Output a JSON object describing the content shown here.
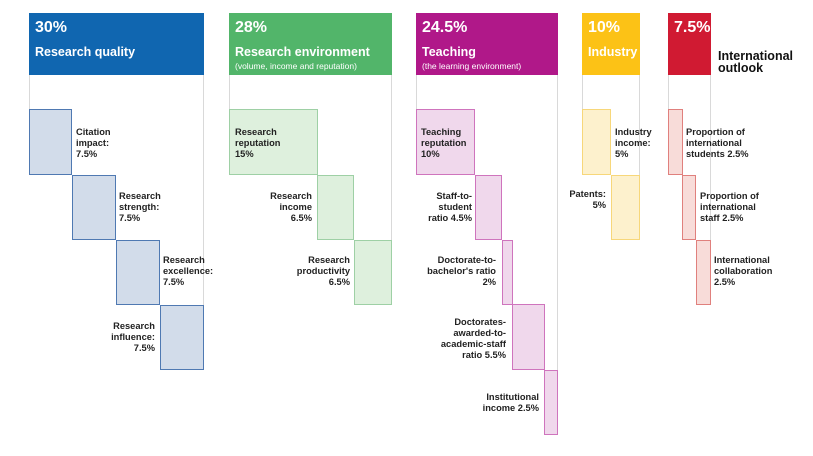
{
  "colors": {
    "research_quality": "#1066b0",
    "research_environment": "#52b56a",
    "teaching": "#b01889",
    "industry": "#fcc216",
    "international_outlook": "#d01a32"
  },
  "research_quality": {
    "percent": "30%",
    "title": "Research quality",
    "items": [
      {
        "lines": [
          "Citation",
          "impact:",
          "7.5%"
        ]
      },
      {
        "lines": [
          "Research",
          "strength:",
          "7.5%"
        ]
      },
      {
        "lines": [
          "Research",
          "excellence:",
          "7.5%"
        ]
      },
      {
        "lines": [
          "Research",
          "influence:",
          "7.5%"
        ]
      }
    ]
  },
  "research_environment": {
    "percent": "28%",
    "title": "Research environment",
    "subtitle": "(volume, income and reputation)",
    "items": [
      {
        "lines": [
          "Research",
          "reputation",
          "15%"
        ]
      },
      {
        "lines": [
          "Research",
          "income",
          "6.5%"
        ]
      },
      {
        "lines": [
          "Research",
          "productivity",
          "6.5%"
        ]
      }
    ]
  },
  "teaching": {
    "percent": "24.5%",
    "title": "Teaching",
    "subtitle": "(the learning environment)",
    "items": [
      {
        "lines": [
          "Teaching",
          "reputation",
          "10%"
        ]
      },
      {
        "lines": [
          "Staff-to-",
          "student",
          "ratio 4.5%"
        ]
      },
      {
        "lines": [
          "Doctorate-to-",
          "bachelor's ratio",
          "2%"
        ]
      },
      {
        "lines": [
          "Doctorates-",
          "awarded-to-",
          "academic-staff",
          "ratio 5.5%"
        ]
      },
      {
        "lines": [
          "Institutional",
          "income 2.5%"
        ]
      }
    ]
  },
  "industry": {
    "percent": "10%",
    "title": "Industry",
    "items": [
      {
        "lines": [
          "Industry",
          "income:",
          "5%"
        ]
      },
      {
        "lines": [
          "Patents:",
          "5%"
        ]
      }
    ]
  },
  "international_outlook": {
    "percent": "7.5%",
    "title_lines": [
      "International",
      "outlook"
    ],
    "items": [
      {
        "lines": [
          "Proportion of",
          "international",
          "students 2.5%"
        ]
      },
      {
        "lines": [
          "Proportion of",
          "international",
          "staff 2.5%"
        ]
      },
      {
        "lines": [
          "International",
          "collaboration",
          "2.5%"
        ]
      }
    ]
  }
}
